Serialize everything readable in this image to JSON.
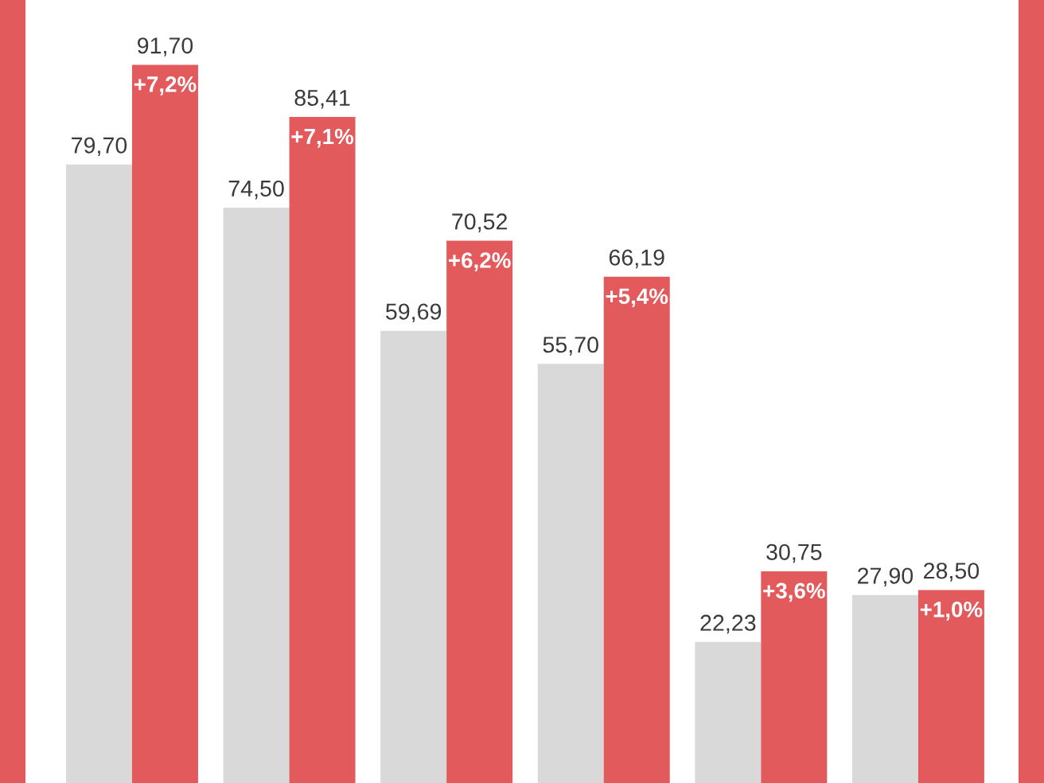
{
  "chart_data": {
    "type": "bar",
    "categories": [
      null,
      null,
      null,
      null,
      null,
      null
    ],
    "series": [
      {
        "color": "#d9d9d9",
        "values": [
          79.7,
          74.5,
          59.69,
          55.7,
          22.23,
          27.9
        ],
        "value_labels": [
          "79,70",
          "74,50",
          "59,69",
          "55,70",
          "22,23",
          "27,90"
        ]
      },
      {
        "color": "#e35a5d",
        "values": [
          91.7,
          85.41,
          70.52,
          66.19,
          30.75,
          28.5
        ],
        "value_labels": [
          "91,70",
          "85,41",
          "70,52",
          "66,19",
          "30,75",
          "28,50"
        ]
      }
    ],
    "annotations": [
      {
        "text": "+7,2%",
        "y": 91.7
      },
      {
        "text": "+7,1%",
        "y": 85.41
      },
      {
        "text": "+6,2%",
        "y": 70.52
      },
      {
        "text": "+5,4%",
        "y": 66.19
      },
      {
        "text": "+3,6%",
        "y": 30.75
      },
      {
        "text": "+1,0%",
        "y": 28.5
      }
    ],
    "legend": false
  }
}
